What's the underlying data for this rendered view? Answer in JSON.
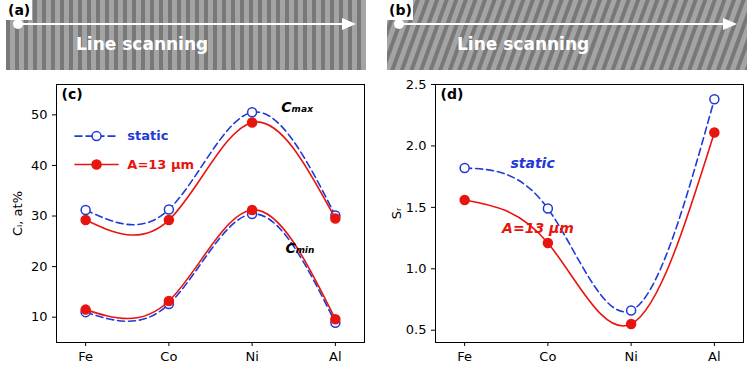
{
  "images": [
    {
      "label": "(a)",
      "text": "Line scanning"
    },
    {
      "label": "(b)",
      "text": "Line scanning"
    }
  ],
  "chart_data": [
    {
      "type": "line",
      "title": "(c)",
      "y_label": "Cᵢ, at%",
      "categories": [
        "Fe",
        "Co",
        "Ni",
        "Al"
      ],
      "ylim": [
        5,
        56
      ],
      "yticks": [
        10,
        20,
        30,
        40,
        50
      ],
      "legend": "upper left",
      "series": [
        {
          "name": "static",
          "color": "#1f3ad8",
          "line_style": "dashed",
          "marker": "open circle",
          "values": [
            31.2,
            31.3,
            50.5,
            30.1
          ]
        },
        {
          "name": "A=13 μm",
          "color": "#e8140f",
          "line_style": "solid",
          "marker": "filled circle",
          "values": [
            29.2,
            29.2,
            48.5,
            29.5
          ]
        },
        {
          "name": "static",
          "color": "#1f3ad8",
          "line_style": "dashed",
          "marker": "open circle",
          "values": [
            11.0,
            12.6,
            30.4,
            8.9
          ]
        },
        {
          "name": "A=13 μm",
          "color": "#e8140f",
          "line_style": "solid",
          "marker": "filled circle",
          "values": [
            11.5,
            13.2,
            31.2,
            9.6
          ]
        }
      ],
      "annotations": [
        {
          "text": "Cₘₐₓ",
          "x": 2.35,
          "y": 51.5,
          "color": "#000000"
        },
        {
          "text": "Cₘᵢₙ",
          "x": 2.4,
          "y": 23.5,
          "color": "#000000"
        }
      ]
    },
    {
      "type": "line",
      "title": "(d)",
      "y_label": "Sᵣ",
      "categories": [
        "Fe",
        "Co",
        "Ni",
        "Al"
      ],
      "ylim": [
        0.4,
        2.5
      ],
      "yticks": [
        0.5,
        {
          "value": 1,
          "label": "1.0"
        },
        1.5,
        {
          "value": 2,
          "label": "2.0"
        },
        2.5
      ],
      "series": [
        {
          "name": "static",
          "color": "#1f3ad8",
          "line_style": "dashed",
          "marker": "open circle",
          "values": [
            1.82,
            1.49,
            0.66,
            2.38
          ]
        },
        {
          "name": "A=13 μm",
          "color": "#e8140f",
          "line_style": "solid",
          "marker": "filled circle",
          "values": [
            1.56,
            1.21,
            0.55,
            2.11
          ]
        }
      ],
      "annotations": [
        {
          "text": "static",
          "x": 0.55,
          "y": 1.86,
          "color": "#1f3ad8"
        },
        {
          "text": "A=13 μm",
          "x": 0.45,
          "y": 1.33,
          "color": "#e8140f"
        }
      ]
    }
  ]
}
